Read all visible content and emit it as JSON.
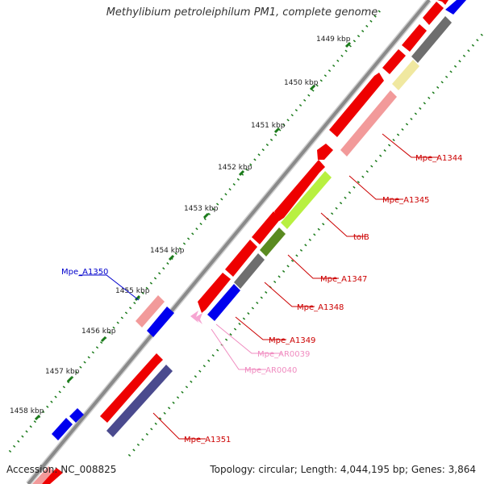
{
  "map": {
    "title": "Methylibium petroleiphilum PM1, complete genome",
    "accession_text": "Accession: NC_008825",
    "topology_text": "Topology: circular; Length: 4,044,195 bp; Genes: 3,864",
    "tick_labels": [
      "1449 kbp",
      "1450 kbp",
      "1451 kbp",
      "1452 kbp",
      "1453 kbp",
      "1454 kbp",
      "1455 kbp",
      "1456 kbp",
      "1457 kbp",
      "1458 kbp"
    ],
    "gene_labels": [
      {
        "text": "Mpe_A1344",
        "color": "#cc0000"
      },
      {
        "text": "Mpe_A1345",
        "color": "#cc0000"
      },
      {
        "text": "tolB",
        "color": "#cc0000"
      },
      {
        "text": "Mpe_A1347",
        "color": "#cc0000"
      },
      {
        "text": "Mpe_A1348",
        "color": "#cc0000"
      },
      {
        "text": "Mpe_A1349",
        "color": "#cc0000"
      },
      {
        "text": "Mpe_AR0039",
        "color": "#f08cc0"
      },
      {
        "text": "Mpe_AR0040",
        "color": "#f08cc0"
      },
      {
        "text": "Mpe_A1350",
        "color": "#0000cc"
      },
      {
        "text": "Mpe_A1351",
        "color": "#cc0000"
      }
    ],
    "colors": {
      "backbone": "#8a8a8a",
      "forward_cds": "#ee0000",
      "reverse_cds": "#0000ee",
      "gc_ticks": "#1a7a1a",
      "cog_salmon": "#f29a9a",
      "cog_yellow": "#f0e8a0",
      "cog_grey": "#6e6e6e",
      "cog_lime": "#b8f040",
      "cog_olive": "#5a8a20",
      "cog_slate": "#4a4a8e",
      "rna": "#f6a6d2"
    }
  }
}
